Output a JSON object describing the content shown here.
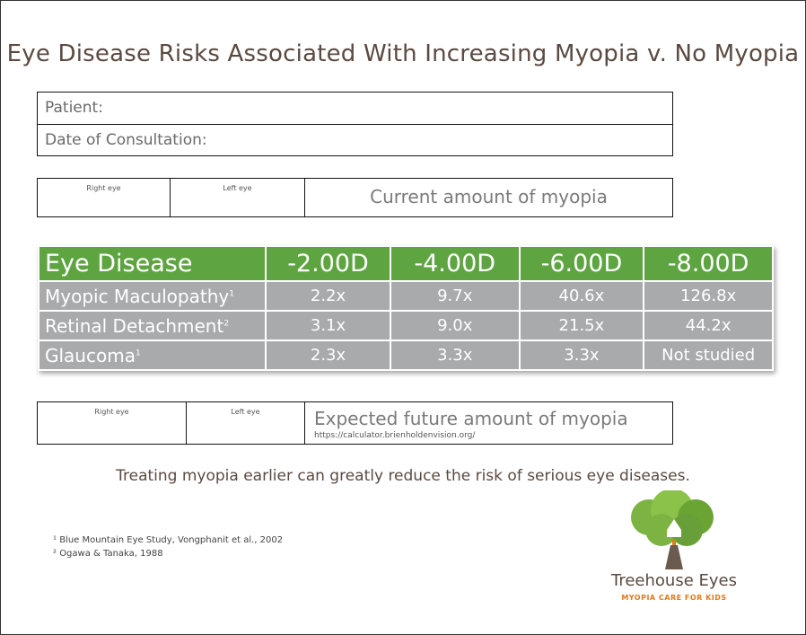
{
  "title": "Eye Disease Risks Associated With Increasing Myopia v. No Myopia",
  "info": {
    "patient_label": "Patient:",
    "date_label": "Date of Consultation:"
  },
  "current": {
    "right_eye": "Right eye",
    "left_eye": "Left eye",
    "label": "Current amount of myopia"
  },
  "table": {
    "headers": [
      "Eye Disease",
      "-2.00D",
      "-4.00D",
      "-6.00D",
      "-8.00D"
    ],
    "rows": [
      {
        "disease": "Myopic Maculopathy",
        "ref": "1",
        "values": [
          "2.2x",
          "9.7x",
          "40.6x",
          "126.8x"
        ]
      },
      {
        "disease": "Retinal Detachment",
        "ref": "2",
        "values": [
          "3.1x",
          "9.0x",
          "21.5x",
          "44.2x"
        ]
      },
      {
        "disease": "Glaucoma",
        "ref": "1",
        "values": [
          "2.3x",
          "3.3x",
          "3.3x",
          "Not studied"
        ]
      }
    ],
    "colors": {
      "header": "#5ea541",
      "cell": "#a9aaab"
    }
  },
  "future": {
    "right_eye": "Right eye",
    "left_eye": "Left eye",
    "label": "Expected future amount of myopia",
    "url": "https://calculator.brienholdenvision.org/"
  },
  "message": "Treating myopia earlier can greatly reduce the risk of serious eye diseases.",
  "footnotes": [
    "¹ Blue Mountain Eye Study, Vongphanit et al., 2002",
    "² Ogawa & Tanaka, 1988"
  ],
  "logo": {
    "name": "Treehouse Eyes",
    "tagline": "MYOPIA CARE FOR KIDS",
    "icon": "tree-icon"
  }
}
